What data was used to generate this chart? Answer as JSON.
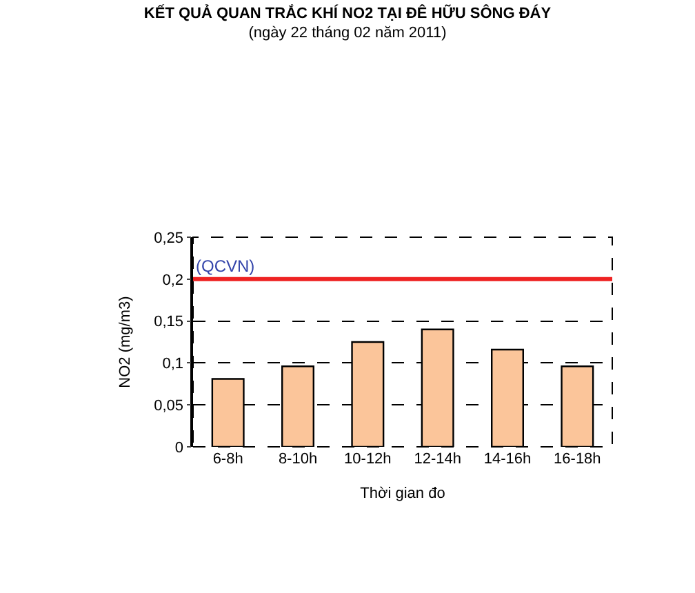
{
  "chart_data": {
    "type": "bar",
    "title": "KẾT QUẢ QUAN TRẮC KHÍ NO2 TẠI ĐÊ HỮU SÔNG ĐÁY",
    "subtitle": "(ngày 22 tháng 02 năm 2011)",
    "xlabel": "Thời gian đo",
    "ylabel": "NO2 (mg/m3)",
    "categories": [
      "6-8h",
      "8-10h",
      "10-12h",
      "12-14h",
      "14-16h",
      "16-18h"
    ],
    "values": [
      0.081,
      0.096,
      0.125,
      0.14,
      0.116,
      0.096
    ],
    "color": "#fbc59a",
    "ylim": [
      0,
      0.25
    ],
    "yticks": [
      0,
      {
        "value": 0.05,
        "label": "0,05"
      },
      {
        "value": 0.1,
        "label": "0,1"
      },
      {
        "value": 0.15,
        "label": "0,15"
      },
      {
        "value": 0.2,
        "label": "0,2"
      },
      {
        "value": 0.25,
        "label": "0,25"
      }
    ],
    "grid": "y",
    "ref_lines": [
      {
        "axis": "y",
        "value": 0.2,
        "label": "(QCVN)",
        "color": "#ee2222"
      }
    ]
  }
}
